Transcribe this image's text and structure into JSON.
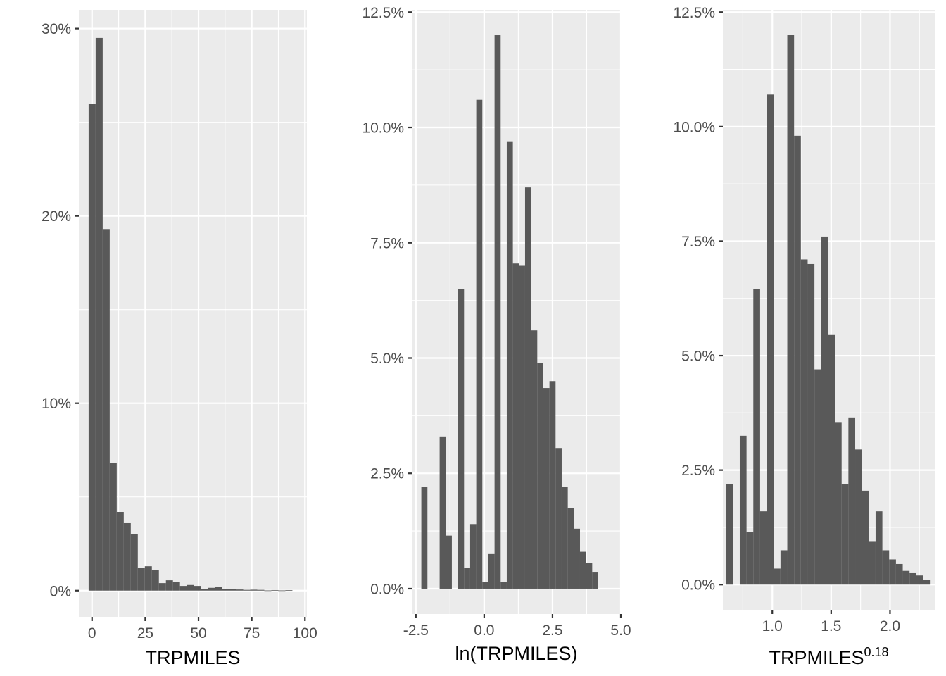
{
  "chart_data": [
    {
      "type": "bar",
      "xlabel": "TRPMILES",
      "x_ticks": [
        0,
        25,
        50,
        75,
        100
      ],
      "x_tick_labels": [
        "0",
        "25",
        "50",
        "75",
        "100"
      ],
      "y_ticks": [
        0,
        10,
        20,
        30
      ],
      "y_tick_labels": [
        "0%",
        "10%",
        "20%",
        "30%"
      ],
      "xlim": [
        -6.2,
        100.9
      ],
      "ylim": [
        -1.4,
        31.0
      ],
      "grid": true,
      "bins": {
        "start": -1.6,
        "width": 3.3,
        "values": [
          26.0,
          29.5,
          19.3,
          6.8,
          4.2,
          3.6,
          3.0,
          1.2,
          1.3,
          1.1,
          0.4,
          0.55,
          0.45,
          0.25,
          0.3,
          0.25,
          0.1,
          0.15,
          0.18,
          0.08,
          0.1,
          0.06,
          0.04,
          0.05,
          0.04,
          0.01,
          0.03,
          0.01,
          0.02,
          0.0
        ]
      }
    },
    {
      "type": "bar",
      "xlabel": "ln(TRPMILES)",
      "x_ticks": [
        -2.5,
        0,
        2.5,
        5
      ],
      "x_tick_labels": [
        "-2.5",
        "0.0",
        "2.5",
        "5.0"
      ],
      "y_ticks": [
        0,
        2.5,
        5,
        7.5,
        10,
        12.5
      ],
      "y_tick_labels": [
        "0.0%",
        "2.5%",
        "5.0%",
        "7.5%",
        "10.0%",
        "12.5%"
      ],
      "xlim": [
        -2.65,
        5.0
      ],
      "ylim": [
        -0.55,
        12.55
      ],
      "grid": true,
      "bins": {
        "start": -2.3,
        "width": 0.2233,
        "values": [
          2.2,
          0,
          0,
          3.3,
          1.15,
          0,
          6.5,
          0.45,
          1.4,
          10.6,
          0.15,
          0.75,
          12.0,
          0.15,
          9.7,
          7.05,
          7.0,
          8.7,
          5.6,
          4.9,
          4.35,
          4.5,
          3.05,
          2.2,
          1.75,
          1.3,
          0.8,
          0.55,
          0.35
        ]
      }
    },
    {
      "type": "bar",
      "xlabel": "TRPMILES",
      "xlabel_exponent": "0.18",
      "x_ticks": [
        1.0,
        1.5,
        2.0
      ],
      "x_tick_labels": [
        "1.0",
        "1.5",
        "2.0"
      ],
      "y_ticks": [
        0,
        2.5,
        5,
        7.5,
        10,
        12.5
      ],
      "y_tick_labels": [
        "0.0%",
        "2.5%",
        "5.0%",
        "7.5%",
        "10.0%",
        "12.5%"
      ],
      "xlim": [
        0.58,
        2.38
      ],
      "ylim": [
        -0.55,
        12.55
      ],
      "grid": true,
      "bins": {
        "start": 0.608,
        "width": 0.0577,
        "values": [
          2.2,
          0,
          3.25,
          1.15,
          6.45,
          1.6,
          10.7,
          0.35,
          0.75,
          12.0,
          9.8,
          7.1,
          7.0,
          4.7,
          7.6,
          5.45,
          3.55,
          2.2,
          3.65,
          2.95,
          2.05,
          0.95,
          1.6,
          0.75,
          0.55,
          0.45,
          0.3,
          0.25,
          0.2,
          0.1
        ]
      }
    }
  ]
}
